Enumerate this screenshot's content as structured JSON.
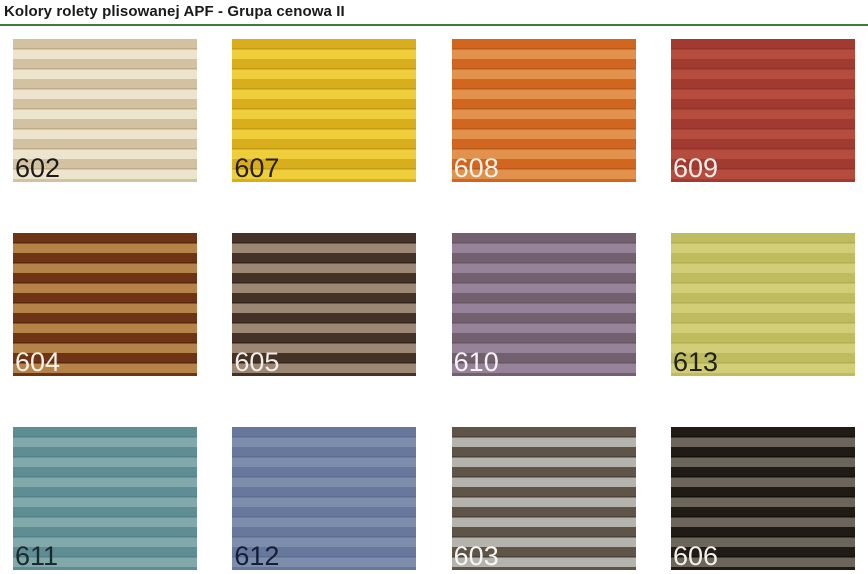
{
  "page": {
    "title": "Kolory rolety plisowanej APF - Grupa cenowa II",
    "underline_color": "#3e7a3e"
  },
  "swatches": [
    {
      "code": "602",
      "light": "#EDE4CD",
      "dark": "#D3C2A2",
      "shadow": "#BFAC86",
      "label_color": "#1d1b18"
    },
    {
      "code": "607",
      "light": "#EFCE3C",
      "dark": "#D9AE1C",
      "shadow": "#C49B15",
      "label_color": "#272011"
    },
    {
      "code": "608",
      "light": "#E2924C",
      "dark": "#D0661F",
      "shadow": "#BC5A1A",
      "label_color": "#F8F3EC"
    },
    {
      "code": "609",
      "light": "#B54C3E",
      "dark": "#A13A30",
      "shadow": "#93342B",
      "label_color": "#F6ECEA"
    },
    {
      "code": "604",
      "light": "#B5824A",
      "dark": "#6E3415",
      "shadow": "#572810",
      "label_color": "#F7F1E9"
    },
    {
      "code": "605",
      "light": "#9C8674",
      "dark": "#443227",
      "shadow": "#362720",
      "label_color": "#F2EDE7"
    },
    {
      "code": "610",
      "light": "#968299",
      "dark": "#73606F",
      "shadow": "#675664",
      "label_color": "#F5F1F4"
    },
    {
      "code": "613",
      "light": "#D1CE77",
      "dark": "#BFBC5F",
      "shadow": "#B2AF55",
      "label_color": "#22211A"
    },
    {
      "code": "611",
      "light": "#81A9AC",
      "dark": "#5E8D94",
      "shadow": "#53818A",
      "label_color": "#1B2A2E"
    },
    {
      "code": "612",
      "light": "#7D8DAC",
      "dark": "#67789C",
      "shadow": "#5C6D92",
      "label_color": "#131F38"
    },
    {
      "code": "603",
      "light": "#B4B3AE",
      "dark": "#5E5448",
      "shadow": "#4A4138",
      "label_color": "#F6F5F2"
    },
    {
      "code": "606",
      "light": "#6B655B",
      "dark": "#201B14",
      "shadow": "#14100B",
      "label_color": "#F2F0EB"
    }
  ]
}
